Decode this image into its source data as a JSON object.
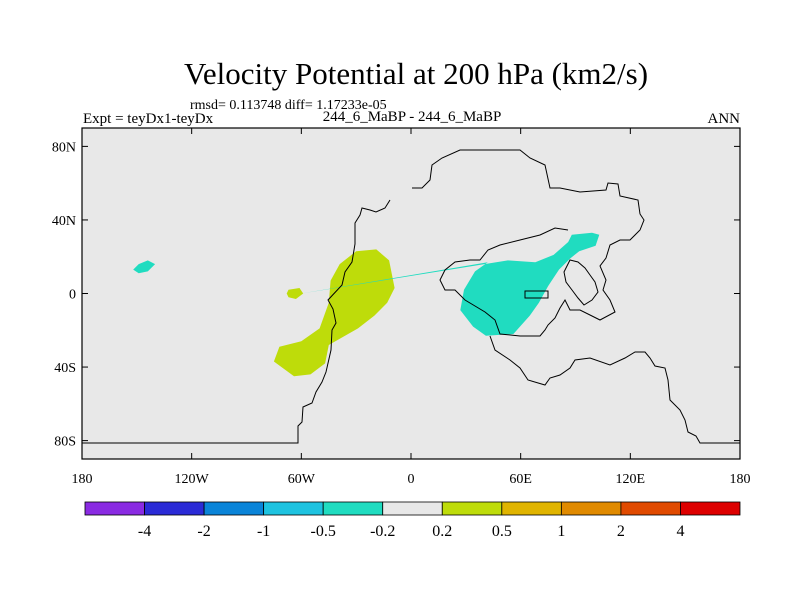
{
  "chart_data": {
    "type": "heatmap",
    "title": "Velocity Potential at 200 hPa (km2/s)",
    "stats_line": "rmsd= 0.113748 diff= 1.17233e-05",
    "left_label": "Expt = teyDx1-teyDx",
    "center_label": "244_6_MaBP - 244_6_MaBP",
    "right_label": "ANN",
    "x_ticks": [
      {
        "value": -180,
        "label": "180"
      },
      {
        "value": -120,
        "label": "120W"
      },
      {
        "value": -60,
        "label": "60W"
      },
      {
        "value": 0,
        "label": "0"
      },
      {
        "value": 60,
        "label": "60E"
      },
      {
        "value": 120,
        "label": "120E"
      },
      {
        "value": 180,
        "label": "180"
      }
    ],
    "y_ticks": [
      {
        "value": 80,
        "label": "80N"
      },
      {
        "value": 40,
        "label": "40N"
      },
      {
        "value": 0,
        "label": "0"
      },
      {
        "value": -40,
        "label": "40S"
      },
      {
        "value": -80,
        "label": "80S"
      }
    ],
    "xlim": [
      -180,
      180
    ],
    "ylim": [
      -90,
      90
    ],
    "colorbar": {
      "colors": [
        "#8a2be2",
        "#2b2bd6",
        "#0a84d8",
        "#1ec3e0",
        "#20dcc0",
        "#e8e8e8",
        "#bedc0a",
        "#e0b400",
        "#e08a00",
        "#e04a00",
        "#dd0000"
      ],
      "labels": [
        "-4",
        "-2",
        "-1",
        "-0.5",
        "-0.2",
        "0.2",
        "0.5",
        "1",
        "2",
        "4"
      ]
    },
    "background_color": "#e8e8e8",
    "regions": [
      {
        "name": "cyan-blob-pacific",
        "color": "#20dcc0",
        "points": [
          [
            -149,
            16
          ],
          [
            -144,
            18
          ],
          [
            -140,
            16
          ],
          [
            -144,
            12
          ],
          [
            -149,
            11
          ],
          [
            -152,
            13
          ]
        ]
      },
      {
        "name": "green-blob-small",
        "color": "#bedc0a",
        "points": [
          [
            -67,
            2
          ],
          [
            -61,
            3
          ],
          [
            -59,
            0
          ],
          [
            -63,
            -3
          ],
          [
            -67,
            -2
          ],
          [
            -68,
            0
          ]
        ]
      },
      {
        "name": "green-blob-atlantic",
        "color": "#bedc0a",
        "points": [
          [
            -39,
            16
          ],
          [
            -30,
            23
          ],
          [
            -19,
            24
          ],
          [
            -12,
            18
          ],
          [
            -9,
            3
          ],
          [
            -13,
            -5
          ],
          [
            -20,
            -12
          ],
          [
            -29,
            -19
          ],
          [
            -45,
            -28
          ],
          [
            -47,
            -38
          ],
          [
            -55,
            -44
          ],
          [
            -64,
            -45
          ],
          [
            -75,
            -37
          ],
          [
            -72,
            -29
          ],
          [
            -60,
            -26
          ],
          [
            -50,
            -19
          ],
          [
            -45,
            -5
          ],
          [
            -44,
            7
          ]
        ]
      },
      {
        "name": "cyan-blob-indian",
        "color": "#20dcc0",
        "points": [
          [
            -60,
            0
          ],
          [
            53,
            18
          ],
          [
            68,
            17
          ],
          [
            78,
            21
          ],
          [
            86,
            28
          ],
          [
            88,
            32
          ],
          [
            99,
            33
          ],
          [
            103,
            32
          ],
          [
            101,
            26
          ],
          [
            92,
            23
          ],
          [
            87,
            19
          ],
          [
            81,
            13
          ],
          [
            75,
            4
          ],
          [
            70,
            -5
          ],
          [
            65,
            -12
          ],
          [
            56,
            -22
          ],
          [
            41,
            -23
          ],
          [
            34,
            -18
          ],
          [
            27,
            -9
          ],
          [
            29,
            2
          ],
          [
            35,
            12
          ],
          [
            42,
            17
          ]
        ]
      }
    ]
  }
}
